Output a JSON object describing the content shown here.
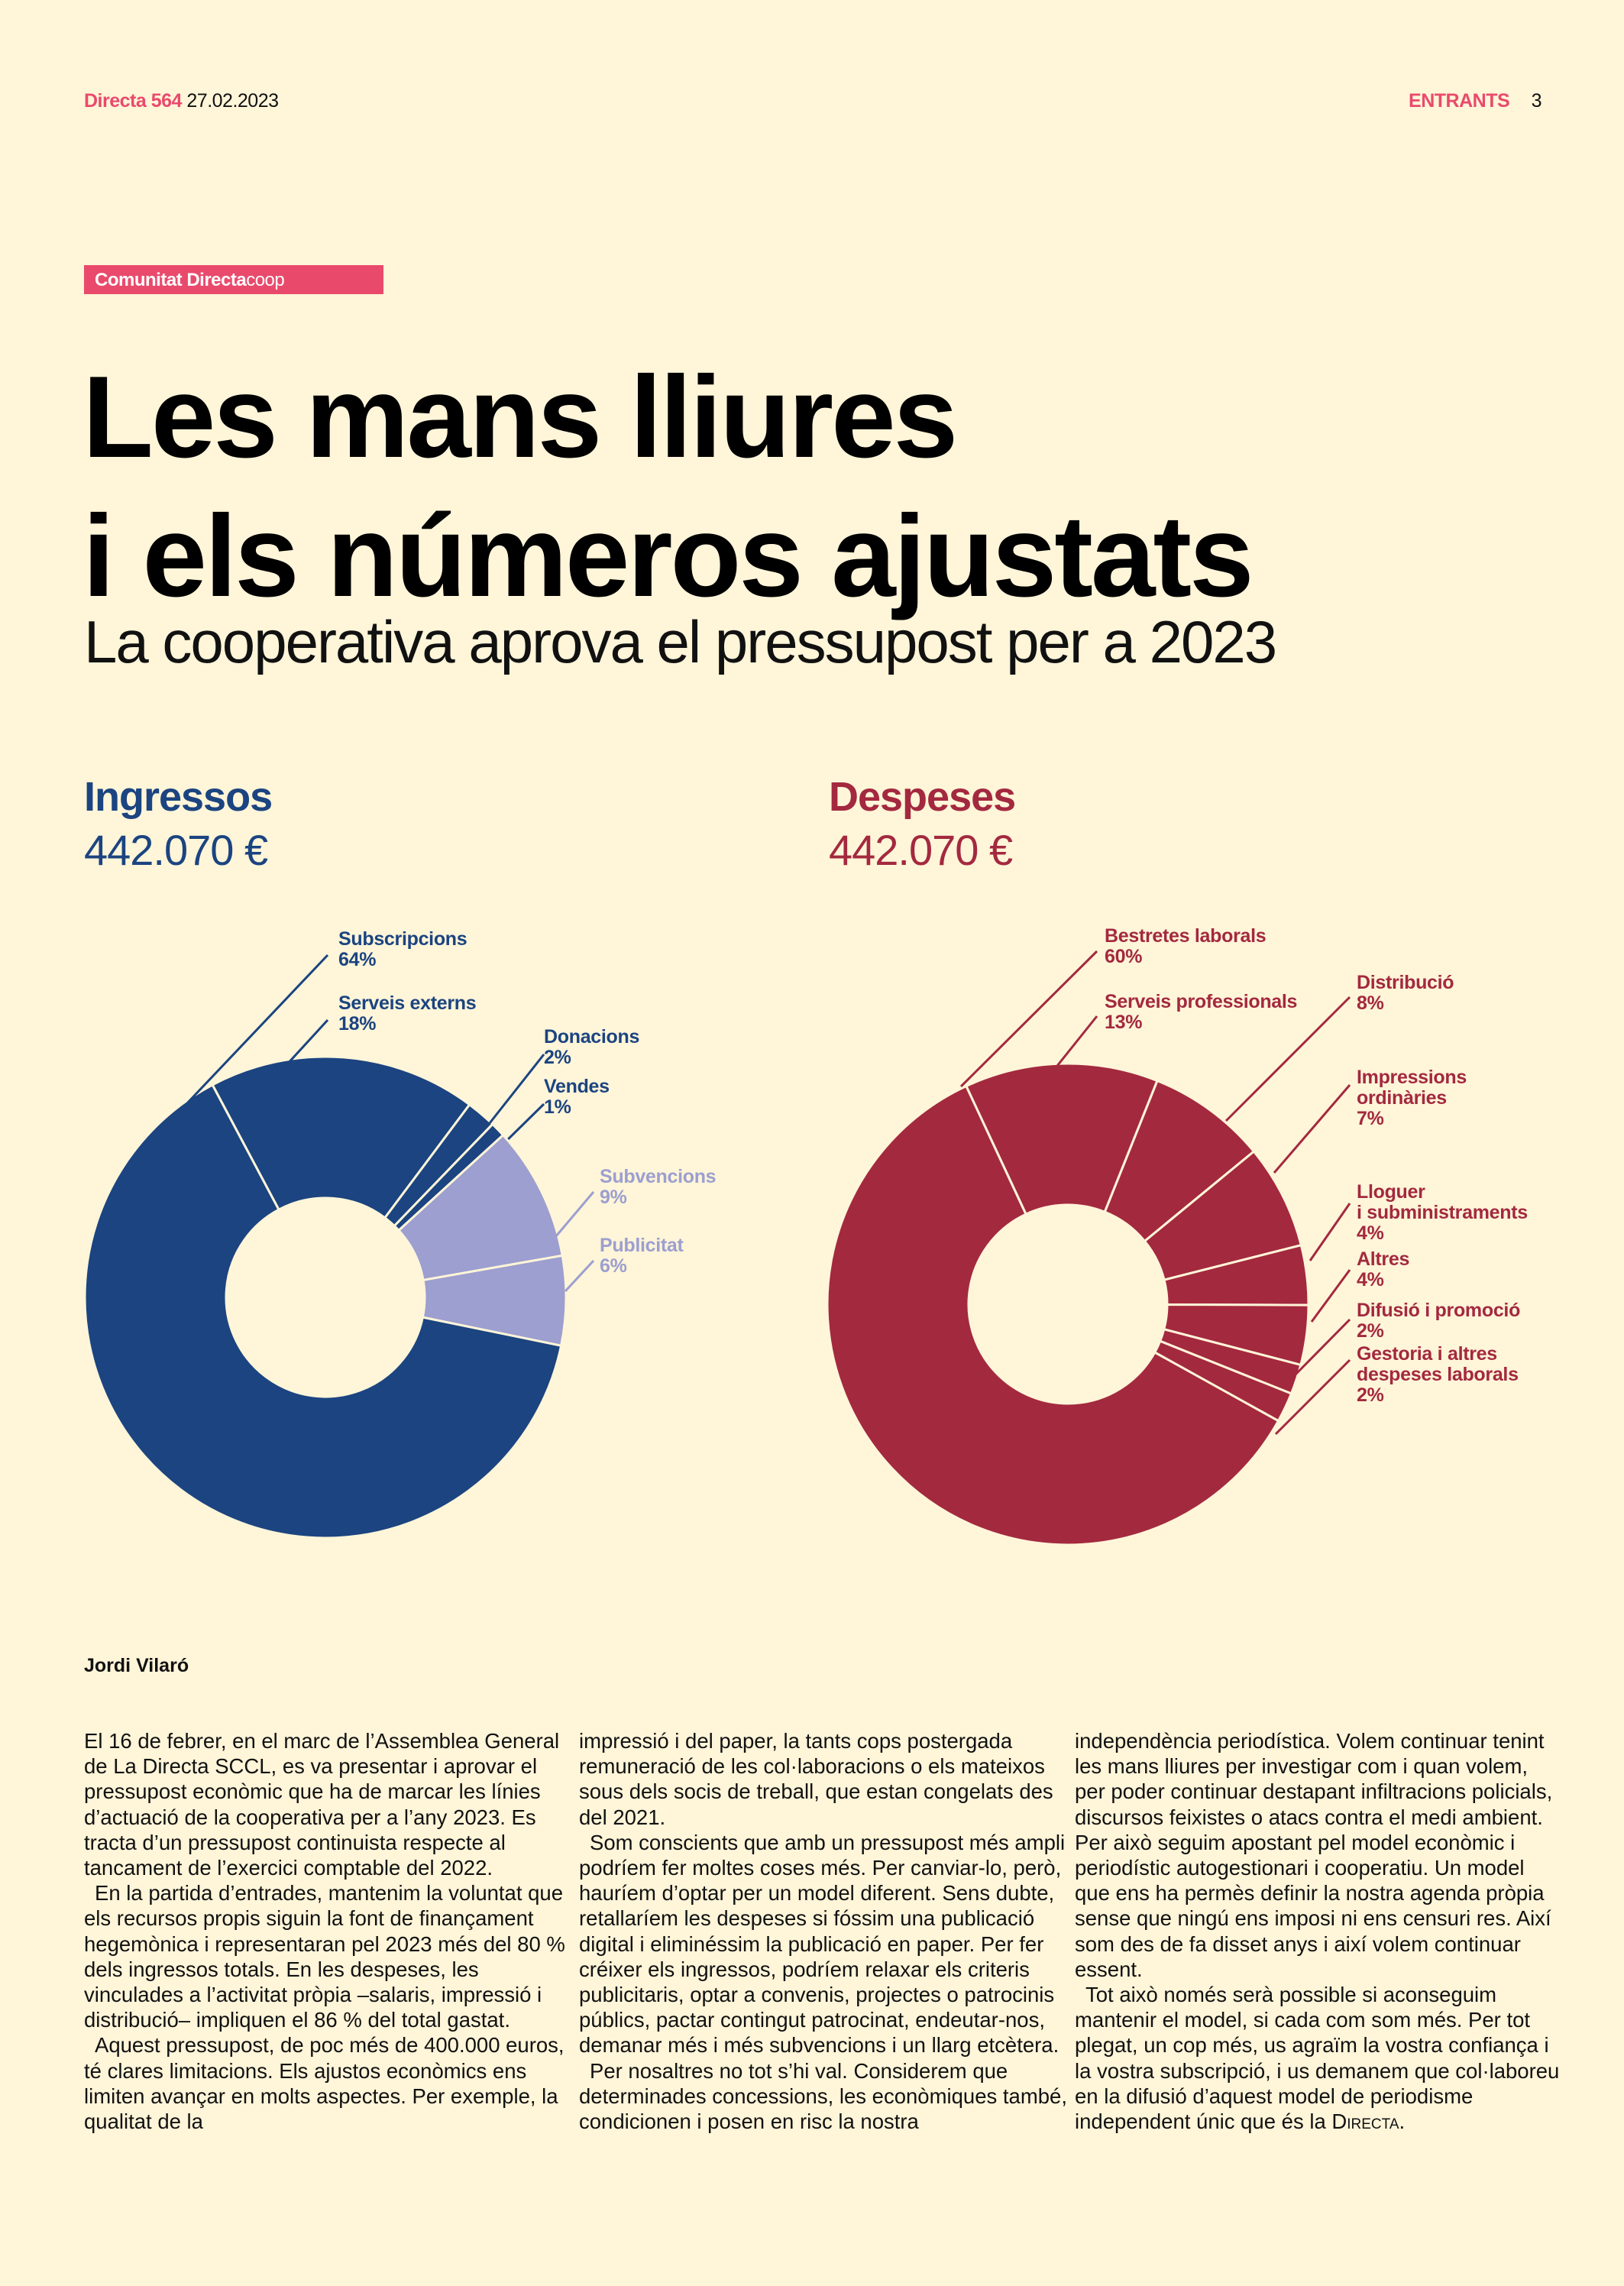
{
  "header": {
    "publication": "Directa 564",
    "date": "27.02.2023",
    "section": "ENTRANTS",
    "page_number": "3"
  },
  "tag": {
    "part1": "Comunitat ",
    "part2": "Directa",
    "part3": "coop"
  },
  "title_line1": "Les mans lliures",
  "title_line2": "i els números ajustats",
  "subtitle": "La cooperativa aprova el pressupost per a 2023",
  "colors": {
    "navy": "#1b4480",
    "lavender": "#9c9fcf",
    "red": "#a3293f",
    "pink": "#e94a6c",
    "background": "#fff5d9"
  },
  "chart_data": [
    {
      "type": "pie",
      "title": "Ingressos",
      "total": "442.070 €",
      "slices": [
        {
          "label": "Serveis externs",
          "value": 18,
          "pct": "18%",
          "color": "#1b4480"
        },
        {
          "label": "Donacions",
          "value": 2,
          "pct": "2%",
          "color": "#1b4480"
        },
        {
          "label": "Vendes",
          "value": 1,
          "pct": "1%",
          "color": "#1b4480"
        },
        {
          "label": "Subvencions",
          "value": 9,
          "pct": "9%",
          "color": "#9c9fcf"
        },
        {
          "label": "Publicitat",
          "value": 6,
          "pct": "6%",
          "color": "#9c9fcf"
        },
        {
          "label": "Subscripcions",
          "value": 64,
          "pct": "64%",
          "color": "#1b4480"
        }
      ]
    },
    {
      "type": "pie",
      "title": "Despeses",
      "total": "442.070 €",
      "slices": [
        {
          "label": "Serveis professionals",
          "value": 13,
          "pct": "13%",
          "color": "#a3293f"
        },
        {
          "label": "Distribució",
          "value": 8,
          "pct": "8%",
          "color": "#a3293f"
        },
        {
          "label": "Impressions ordinàries",
          "value": 7,
          "pct": "7%",
          "color": "#a3293f"
        },
        {
          "label": "Lloguer i subministraments",
          "value": 4,
          "pct": "4%",
          "color": "#a3293f"
        },
        {
          "label": "Altres",
          "value": 4,
          "pct": "4%",
          "color": "#a3293f"
        },
        {
          "label": "Difusió i promoció",
          "value": 2,
          "pct": "2%",
          "color": "#a3293f"
        },
        {
          "label": "Gestoria i altres despeses laborals",
          "value": 2,
          "pct": "2%",
          "color": "#a3293f"
        },
        {
          "label": "Bestretes laborals",
          "value": 60,
          "pct": "60%",
          "color": "#a3293f"
        }
      ]
    }
  ],
  "labels_display": {
    "impressions_l1": "Impressions",
    "impressions_l2": "ordinàries",
    "lloguer_l1": "Lloguer",
    "lloguer_l2": "i subministraments",
    "gestoria_l1": "Gestoria i altres",
    "gestoria_l2": "despeses laborals"
  },
  "byline": "Jordi Vilaró",
  "body": {
    "col1": [
      "El 16 de febrer, en el marc de l’Assemblea General de La Directa SCCL, es va presentar i aprovar el pressupost econòmic que ha de marcar les línies d’actuació de la cooperativa per a l’any 2023. Es tracta d’un pressupost continuista respecte al tancament de l’exercici comptable del 2022.",
      "En la partida d’entrades, mantenim la voluntat que els recursos propis siguin la font de finançament hegemònica i representaran pel 2023 més del 80 % dels ingressos totals. En les despeses, les vinculades a l’activitat pròpia –salaris, impressió i distribució– impliquen el 86 % del total gastat.",
      "Aquest pressupost, de poc més de 400.000 euros, té clares limitacions. Els ajustos econòmics ens limiten avançar en molts aspectes. Per exemple, la qualitat de la"
    ],
    "col2": [
      "impressió i del paper, la tants cops postergada remuneració de les col·laboracions o els mateixos sous dels socis de treball, que estan congelats des del 2021.",
      "Som conscients que amb un pressupost més ampli podríem fer moltes coses més. Per canviar-lo, però, hauríem d’optar per un model diferent. Sens dubte, retallaríem les despeses si fóssim una publicació digital i eliminéssim la publicació en paper. Per fer créixer els ingressos, podríem relaxar els criteris publicitaris, optar a convenis, projectes o patrocinis públics, pactar contingut patrocinat, endeutar-nos, demanar més i més subvencions i un llarg etcètera.",
      "Per nosaltres no tot s’hi val. Considerem que determinades concessions, les econòmiques també, condicionen i posen en risc la nostra"
    ],
    "col3": [
      "independència periodística. Volem continuar tenint les mans lliures per investigar com i quan volem, per poder continuar destapant infiltracions policials, discursos feixistes o atacs contra el medi ambient. Per això seguim apostant pel model econòmic i periodístic autogestionari i cooperatiu. Un model que ens ha permès definir la nostra agenda pròpia sense que ningú ens imposi ni ens censuri res. Així som des de fa disset anys i així volem continuar essent.",
      "Tot això només serà possible si aconseguim mantenir el model, si cada com som més. Per tot plegat, un cop més, us agraïm la vostra confiança i la vostra subscripció, i us demanem que col·laboreu en la difusió d’aquest model de periodisme independent únic que és la"
    ],
    "signature_word": "Directa",
    "final_punct": "."
  }
}
